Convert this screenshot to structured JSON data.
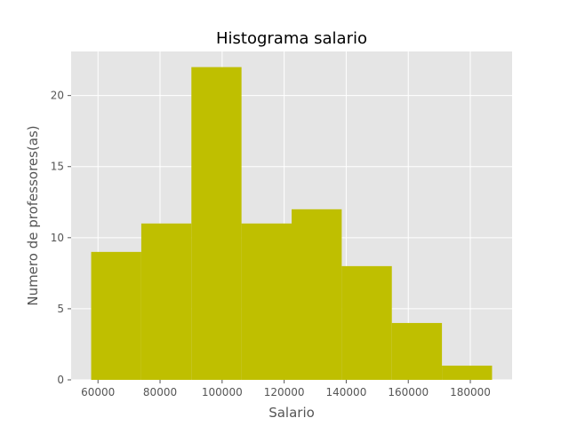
{
  "chart_data": {
    "type": "bar",
    "subtype": "histogram",
    "title": "Histograma salario",
    "xlabel": "Salario",
    "ylabel": "Numero de professores(as)",
    "bin_edges": [
      57800,
      73950,
      90100,
      106250,
      122400,
      138550,
      154700,
      170850,
      187000
    ],
    "values": [
      9,
      11,
      22,
      11,
      12,
      8,
      4,
      1
    ],
    "xlim": [
      51340,
      193460
    ],
    "ylim": [
      0,
      23.1
    ],
    "x_ticks": [
      60000,
      80000,
      100000,
      120000,
      140000,
      160000,
      180000
    ],
    "x_tick_labels": [
      "60000",
      "80000",
      "100000",
      "120000",
      "140000",
      "160000",
      "180000"
    ],
    "y_ticks": [
      0,
      5,
      10,
      15,
      20
    ],
    "y_tick_labels": [
      "0",
      "5",
      "10",
      "15",
      "20"
    ],
    "grid": true,
    "bar_color": "#bfbf00",
    "background_color": "#e5e5e5",
    "grid_color": "#ffffff"
  }
}
